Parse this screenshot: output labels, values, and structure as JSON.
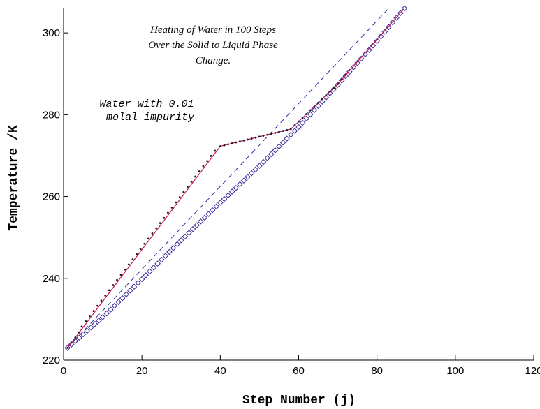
{
  "chart_data": {
    "type": "line",
    "title_lines": [
      "Heating of Water in 100 Steps",
      "Over the Solid to Liquid Phase",
      "Change."
    ],
    "annotation_lines": [
      "Water with 0.01",
      "molal impurity"
    ],
    "xlabel": "Step Number (j)",
    "ylabel": "Temperature /K",
    "xlim": [
      0,
      120
    ],
    "ylim": [
      220,
      306
    ],
    "xticks": [
      0,
      20,
      40,
      60,
      80,
      100,
      120
    ],
    "yticks": [
      220,
      240,
      260,
      280,
      300
    ],
    "grid": false,
    "colors": {
      "impurity_curve": "#cc1144",
      "impurity_dots": "#1a1a3a",
      "reference_line": "#2a2aa0",
      "pure_markers": "#3a2a9a"
    },
    "series": [
      {
        "style": "solid-line-with-dots",
        "x": [
          1,
          40,
          58,
          70,
          87
        ],
        "y": [
          223,
          272.3,
          276.5,
          287.5,
          306
        ]
      },
      {
        "style": "dashed-line",
        "x": [
          1,
          83
        ],
        "y": [
          223,
          306
        ]
      },
      {
        "style": "diamond-markers",
        "x": [
          1,
          10,
          20,
          30,
          40,
          50,
          60,
          70,
          80,
          87
        ],
        "y": [
          223,
          230.5,
          239.8,
          249.3,
          258.5,
          267.5,
          277,
          287.3,
          298,
          306
        ]
      }
    ]
  }
}
